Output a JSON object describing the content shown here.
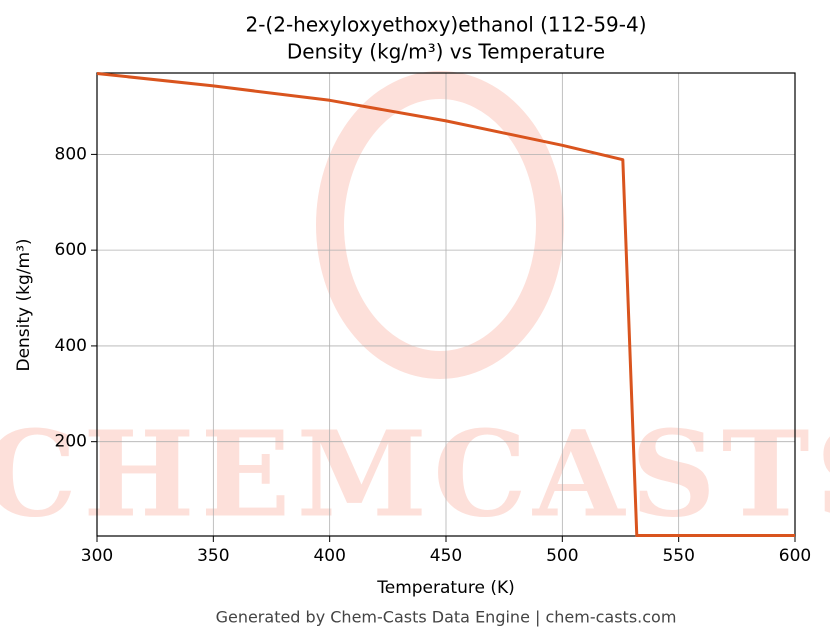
{
  "chart_data": {
    "type": "line",
    "title": "2-(2-hexyloxyethoxy)ethanol (112-59-4)",
    "subtitle": "Density (kg/m³) vs Temperature",
    "x_label": "Temperature (K)",
    "y_label": "Density (kg/m³)",
    "footer": "Generated by Chem-Casts Data Engine | chem-casts.com",
    "watermark": "CHEMCASTS",
    "x": [
      300,
      350,
      400,
      450,
      500,
      526,
      532,
      600
    ],
    "series": [
      {
        "name": "Density",
        "color": "#d9541e",
        "values": [
          969,
          943,
          913,
          870,
          819,
          789,
          4,
          4
        ]
      }
    ],
    "xlim": [
      300,
      600
    ],
    "ylim": [
      3,
      970
    ],
    "xticks": [
      300,
      350,
      400,
      450,
      500,
      550,
      600
    ],
    "yticks": [
      200,
      400,
      600,
      800
    ],
    "grid": true
  }
}
